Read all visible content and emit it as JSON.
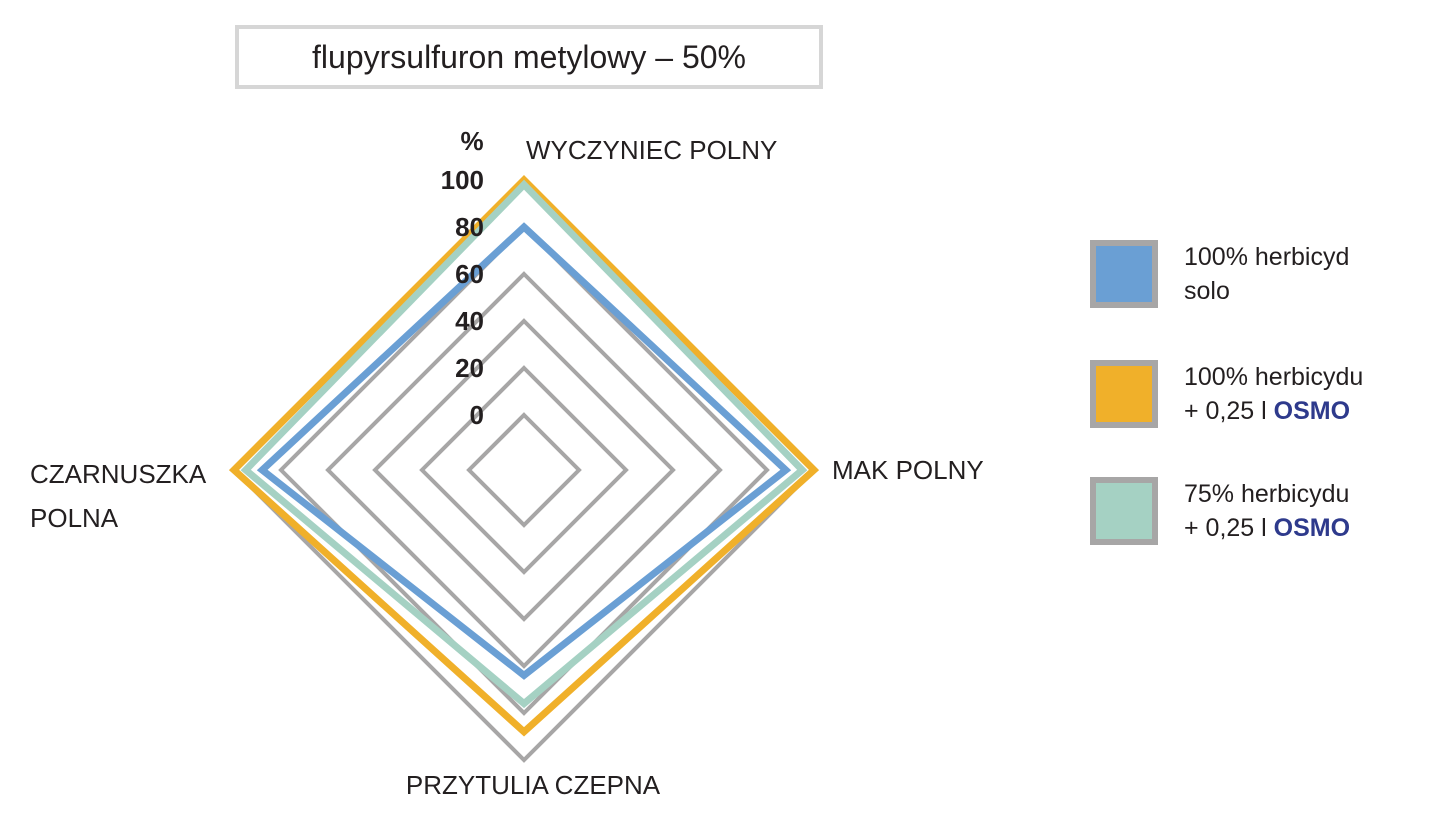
{
  "title": "flupyrsulfuron metylowy – 50%",
  "chart_data": {
    "type": "radar",
    "title": "flupyrsulfuron metylowy – 50%",
    "unit_label": "%",
    "axes": [
      "WYCZYNIEC POLNY",
      "MAK POLNY",
      "PRZYTULIA CZEPNA",
      "CZARNUSZKA POLNA"
    ],
    "axis_label_lines": [
      [
        "WYCZYNIEC POLNY"
      ],
      [
        "MAK POLNY"
      ],
      [
        "PRZYTULIA CZEPNA"
      ],
      [
        "CZARNUSZKA",
        "POLNA"
      ]
    ],
    "rlim": [
      0,
      100
    ],
    "grid_values": [
      0,
      20,
      40,
      60,
      80,
      100
    ],
    "tick_labels": [
      "0",
      "20",
      "40",
      "60",
      "80",
      "100"
    ],
    "grid_color": "#a7a6a6",
    "series": [
      {
        "name": "100% herbicyd solo",
        "color": "#6a9fd4",
        "values": [
          80,
          88,
          64,
          88
        ]
      },
      {
        "name": "100% herbicydu + 0,25 l OSMO",
        "color": "#f0b02a",
        "values": [
          100,
          100,
          88,
          100
        ]
      },
      {
        "name": "75% herbicydu + 0,25 l OSMO",
        "color": "#a5d1c3",
        "values": [
          98,
          95,
          76,
          95
        ]
      }
    ]
  },
  "legend": [
    {
      "line1": "100% herbicyd",
      "line2": "solo",
      "brand": "",
      "color": "#6a9fd4"
    },
    {
      "line1": "100% herbicydu",
      "line2": "+ 0,25 l ",
      "brand": "OSMO",
      "color": "#f0b02a"
    },
    {
      "line1": "75% herbicydu",
      "line2": "+ 0,25 l ",
      "brand": "OSMO",
      "color": "#a5d1c3"
    }
  ]
}
